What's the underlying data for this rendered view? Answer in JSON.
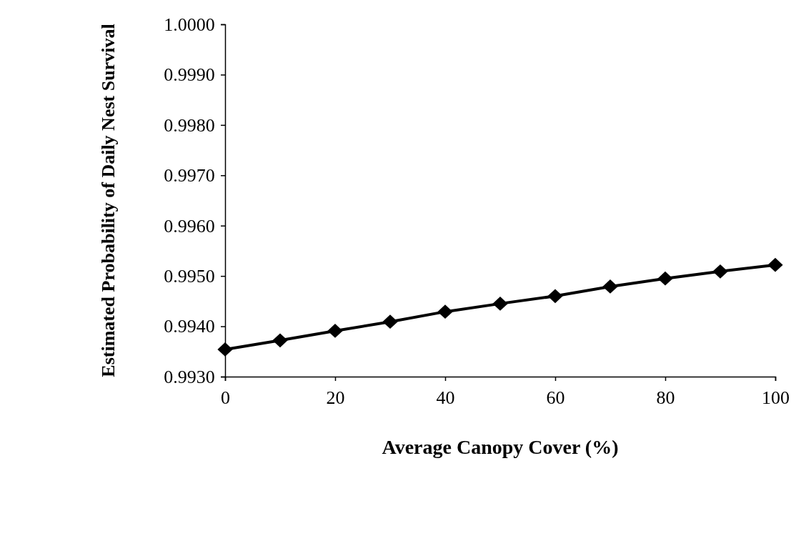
{
  "chart_data": {
    "type": "line",
    "xlabel": "Average Canopy Cover (%)",
    "ylabel": "Estimated Probability of Daily Nest Survival",
    "x": [
      0,
      10,
      20,
      30,
      40,
      50,
      60,
      70,
      80,
      90,
      100
    ],
    "series": [
      {
        "color": "#000000",
        "values": [
          0.99354,
          0.99372,
          0.99391,
          0.99409,
          0.99429,
          0.99445,
          0.9946,
          0.99479,
          0.99495,
          0.99509,
          0.99522
        ]
      }
    ],
    "xlim": [
      0,
      100
    ],
    "xticks": [
      0,
      20,
      40,
      60,
      80,
      100
    ],
    "ylim": [
      0.993,
      1.0
    ],
    "yticks": [
      {
        "value": 0.993,
        "label": "0.9930"
      },
      {
        "value": 0.994,
        "label": "0.9940"
      },
      {
        "value": 0.995,
        "label": "0.9950"
      },
      {
        "value": 0.996,
        "label": "0.9960"
      },
      {
        "value": 0.997,
        "label": "0.9970"
      },
      {
        "value": 0.998,
        "label": "0.9980"
      },
      {
        "value": 0.999,
        "label": "0.9990"
      },
      {
        "value": 1.0,
        "label": "1.0000"
      }
    ],
    "marker": "diamond",
    "line_style": "solid",
    "grid": false
  }
}
